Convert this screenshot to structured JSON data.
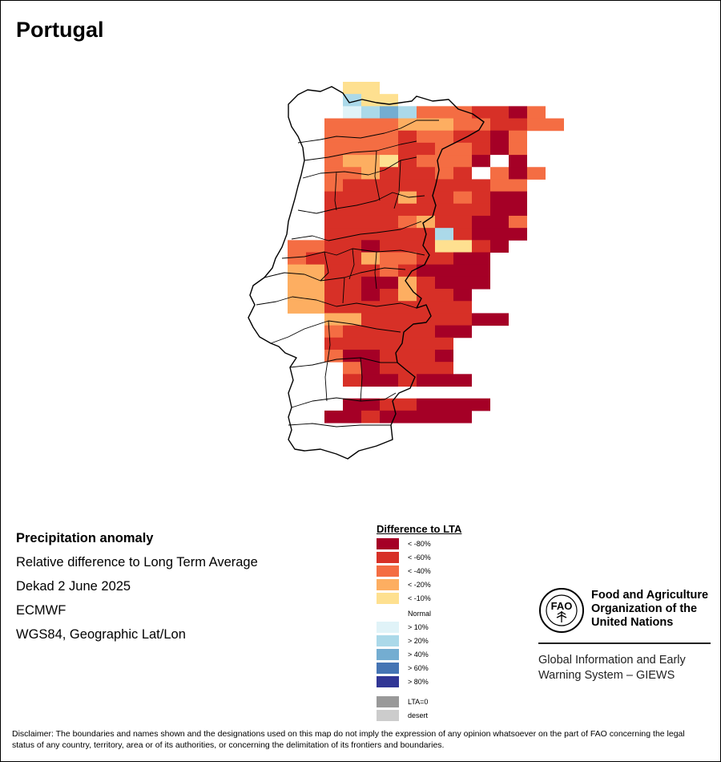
{
  "title": "Portugal",
  "info": {
    "heading": "Precipitation anomaly",
    "line1": "Relative difference to Long Term Average",
    "line2": "Dekad 2 June 2025",
    "line3": "ECMWF",
    "line4": "WGS84, Geographic Lat/Lon"
  },
  "legend": {
    "title": "Difference to LTA",
    "items": [
      {
        "label": "< -80%",
        "color": "#a50026"
      },
      {
        "label": "< -60%",
        "color": "#d73027"
      },
      {
        "label": "< -40%",
        "color": "#f46d43"
      },
      {
        "label": "< -20%",
        "color": "#fdae61"
      },
      {
        "label": "< -10%",
        "color": "#fee090"
      },
      {
        "label": "Normal",
        "color": "#ffffff"
      },
      {
        "label": "> 10%",
        "color": "#e0f3f8"
      },
      {
        "label": "> 20%",
        "color": "#abd9e9"
      },
      {
        "label": "> 40%",
        "color": "#74add1"
      },
      {
        "label": "> 60%",
        "color": "#4575b4"
      },
      {
        "label": "> 80%",
        "color": "#313695"
      },
      {
        "label": "LTA=0",
        "color": "#999999"
      },
      {
        "label": "desert",
        "color": "#cccccc"
      }
    ]
  },
  "org": {
    "name": "Food and Agriculture Organization of the United Nations",
    "system": "Global Information and Early Warning System – GIEWS"
  },
  "disclaimer": "Disclaimer: The boundaries and names shown and the designations used on this map do not imply the expression of any opinion whatsoever on the part of FAO concerning the legal status of any country, territory, area or of its authorities, or concerning the delimitation of its frontiers and boundaries.",
  "grid": {
    "codes": "0=<-80%,1=<-60%,2=<-40%,3=<-20%,4=<-10%,5=Normal,6=>10%,7=>20%,8=>40%",
    "rows": [
      "......44.........",
      "......744........",
      "......67872221102",
      ".....2222333221122",
      ".....22221221102",
      ".....22221122102",
      ".....23341222050",
      ".....223111215202",
      ".....21111111122",
      ".....11113112100",
      ".....11111111100",
      ".....11112311002",
      ".....11111171000",
      "...221101114410",
      "...21113221100",
      "...33111210000",
      "...33110031000",
      "...3311013110",
      "...3311111111",
      ".....3311111100",
      ".....21111100",
      ".....1111111",
      ".....2001110",
      "......201111",
      "......1001000",
      "...........",
      "......00110000",
      ".....00100000"
    ]
  }
}
